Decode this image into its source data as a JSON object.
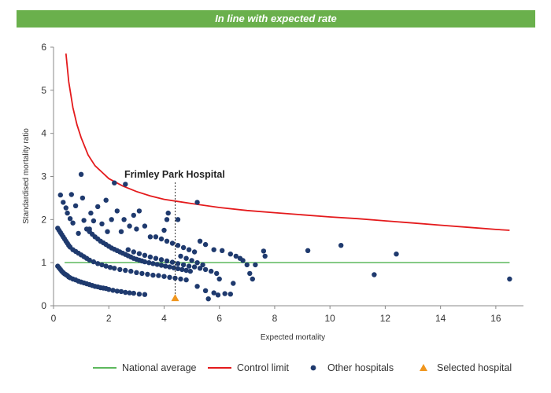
{
  "banner": {
    "text": "In line with expected rate",
    "color": "#6ab04c"
  },
  "chart_data": {
    "type": "scatter",
    "xlabel": "Expected mortality",
    "ylabel": "Standardised mortality ratio",
    "xlim": [
      0,
      17
    ],
    "ylim": [
      0,
      6
    ],
    "x_ticks": [
      0,
      2,
      4,
      6,
      8,
      10,
      12,
      14,
      16
    ],
    "y_ticks": [
      0,
      1,
      2,
      3,
      4,
      5,
      6
    ],
    "grid": false,
    "legend_position": "bottom",
    "colors": {
      "national_average": "#5cb85c",
      "control_limit": "#e41a1c",
      "other_hospitals": "#1f3a6e",
      "selected_hospital": "#f0961e"
    },
    "annotation": {
      "text": "Frimley Park Hospital",
      "x": 4.4
    },
    "national_average": {
      "name": "National average",
      "y": 1,
      "x_range": [
        0.4,
        16.5
      ]
    },
    "control_limit": {
      "name": "Control limit",
      "points": [
        [
          0.45,
          5.85
        ],
        [
          0.55,
          5.2
        ],
        [
          0.7,
          4.6
        ],
        [
          0.85,
          4.2
        ],
        [
          1.0,
          3.9
        ],
        [
          1.25,
          3.5
        ],
        [
          1.5,
          3.25
        ],
        [
          2.0,
          2.95
        ],
        [
          2.5,
          2.78
        ],
        [
          3.0,
          2.65
        ],
        [
          3.5,
          2.55
        ],
        [
          4.0,
          2.47
        ],
        [
          4.5,
          2.42
        ],
        [
          5.0,
          2.37
        ],
        [
          6.0,
          2.28
        ],
        [
          7.0,
          2.21
        ],
        [
          8.0,
          2.16
        ],
        [
          9.0,
          2.11
        ],
        [
          10.0,
          2.06
        ],
        [
          11.0,
          2.02
        ],
        [
          12.0,
          1.97
        ],
        [
          13.0,
          1.92
        ],
        [
          14.0,
          1.87
        ],
        [
          15.0,
          1.82
        ],
        [
          16.0,
          1.77
        ],
        [
          16.5,
          1.75
        ]
      ]
    },
    "other_hospitals": {
      "name": "Other hospitals",
      "points": [
        [
          0.25,
          2.57
        ],
        [
          0.35,
          2.4
        ],
        [
          0.45,
          2.27
        ],
        [
          0.5,
          2.15
        ],
        [
          0.6,
          2.02
        ],
        [
          0.65,
          2.58
        ],
        [
          0.7,
          1.92
        ],
        [
          0.8,
          2.32
        ],
        [
          0.9,
          1.68
        ],
        [
          1.0,
          3.05
        ],
        [
          1.05,
          2.5
        ],
        [
          1.1,
          1.98
        ],
        [
          1.3,
          1.78
        ],
        [
          1.35,
          2.15
        ],
        [
          1.45,
          1.97
        ],
        [
          1.6,
          2.3
        ],
        [
          1.75,
          1.9
        ],
        [
          1.9,
          2.45
        ],
        [
          1.95,
          1.72
        ],
        [
          2.1,
          2.0
        ],
        [
          2.2,
          2.85
        ],
        [
          2.3,
          2.2
        ],
        [
          2.45,
          1.72
        ],
        [
          2.55,
          2.0
        ],
        [
          2.6,
          2.82
        ],
        [
          2.75,
          1.85
        ],
        [
          2.9,
          2.1
        ],
        [
          3.0,
          1.78
        ],
        [
          3.1,
          2.2
        ],
        [
          3.3,
          1.85
        ],
        [
          3.5,
          1.6
        ],
        [
          4.0,
          1.75
        ],
        [
          4.1,
          2.0
        ],
        [
          4.15,
          2.15
        ],
        [
          4.5,
          2.0
        ],
        [
          5.2,
          2.4
        ],
        [
          0.15,
          1.8
        ],
        [
          0.2,
          1.75
        ],
        [
          0.25,
          1.7
        ],
        [
          0.3,
          1.65
        ],
        [
          0.35,
          1.6
        ],
        [
          0.4,
          1.55
        ],
        [
          0.45,
          1.5
        ],
        [
          0.5,
          1.45
        ],
        [
          0.55,
          1.4
        ],
        [
          0.6,
          1.36
        ],
        [
          0.7,
          1.3
        ],
        [
          0.8,
          1.26
        ],
        [
          0.9,
          1.22
        ],
        [
          1.0,
          1.18
        ],
        [
          1.1,
          1.14
        ],
        [
          1.2,
          1.1
        ],
        [
          1.3,
          1.06
        ],
        [
          1.45,
          1.02
        ],
        [
          1.6,
          0.98
        ],
        [
          1.75,
          0.95
        ],
        [
          1.9,
          0.92
        ],
        [
          2.05,
          0.89
        ],
        [
          2.2,
          0.87
        ],
        [
          2.4,
          0.84
        ],
        [
          2.6,
          0.82
        ],
        [
          2.8,
          0.8
        ],
        [
          3.0,
          0.77
        ],
        [
          3.2,
          0.75
        ],
        [
          3.4,
          0.73
        ],
        [
          3.6,
          0.71
        ],
        [
          3.8,
          0.7
        ],
        [
          4.0,
          0.68
        ],
        [
          4.2,
          0.66
        ],
        [
          4.4,
          0.64
        ],
        [
          4.6,
          0.62
        ],
        [
          4.8,
          0.6
        ],
        [
          0.15,
          0.92
        ],
        [
          0.2,
          0.88
        ],
        [
          0.25,
          0.84
        ],
        [
          0.3,
          0.8
        ],
        [
          0.35,
          0.77
        ],
        [
          0.4,
          0.74
        ],
        [
          0.45,
          0.72
        ],
        [
          0.5,
          0.7
        ],
        [
          0.55,
          0.67
        ],
        [
          0.6,
          0.65
        ],
        [
          0.7,
          0.62
        ],
        [
          0.8,
          0.6
        ],
        [
          0.9,
          0.57
        ],
        [
          1.0,
          0.55
        ],
        [
          1.1,
          0.53
        ],
        [
          1.2,
          0.51
        ],
        [
          1.3,
          0.49
        ],
        [
          1.4,
          0.47
        ],
        [
          1.5,
          0.45
        ],
        [
          1.6,
          0.44
        ],
        [
          1.7,
          0.42
        ],
        [
          1.8,
          0.41
        ],
        [
          1.9,
          0.4
        ],
        [
          2.0,
          0.38
        ],
        [
          2.15,
          0.36
        ],
        [
          2.3,
          0.34
        ],
        [
          2.45,
          0.33
        ],
        [
          2.6,
          0.31
        ],
        [
          2.75,
          0.3
        ],
        [
          2.9,
          0.29
        ],
        [
          3.1,
          0.27
        ],
        [
          3.3,
          0.26
        ],
        [
          1.2,
          1.78
        ],
        [
          1.3,
          1.72
        ],
        [
          1.4,
          1.66
        ],
        [
          1.5,
          1.6
        ],
        [
          1.6,
          1.55
        ],
        [
          1.7,
          1.5
        ],
        [
          1.8,
          1.46
        ],
        [
          1.9,
          1.42
        ],
        [
          2.0,
          1.38
        ],
        [
          2.1,
          1.34
        ],
        [
          2.2,
          1.31
        ],
        [
          2.3,
          1.28
        ],
        [
          2.4,
          1.25
        ],
        [
          2.5,
          1.22
        ],
        [
          2.6,
          1.19
        ],
        [
          2.7,
          1.16
        ],
        [
          2.8,
          1.13
        ],
        [
          2.9,
          1.1
        ],
        [
          3.0,
          1.08
        ],
        [
          3.1,
          1.06
        ],
        [
          3.2,
          1.04
        ],
        [
          3.3,
          1.02
        ],
        [
          3.45,
          1.0
        ],
        [
          3.6,
          0.98
        ],
        [
          3.75,
          0.96
        ],
        [
          3.9,
          0.94
        ],
        [
          4.05,
          0.92
        ],
        [
          4.2,
          0.9
        ],
        [
          4.35,
          0.88
        ],
        [
          4.5,
          0.86
        ],
        [
          4.65,
          0.84
        ],
        [
          4.8,
          0.82
        ],
        [
          4.95,
          0.8
        ],
        [
          2.7,
          1.3
        ],
        [
          2.9,
          1.25
        ],
        [
          3.1,
          1.21
        ],
        [
          3.3,
          1.17
        ],
        [
          3.5,
          1.13
        ],
        [
          3.7,
          1.1
        ],
        [
          3.9,
          1.07
        ],
        [
          4.1,
          1.04
        ],
        [
          4.3,
          1.01
        ],
        [
          4.5,
          0.98
        ],
        [
          4.7,
          0.95
        ],
        [
          4.9,
          0.92
        ],
        [
          5.1,
          0.9
        ],
        [
          5.3,
          0.87
        ],
        [
          5.5,
          0.84
        ],
        [
          5.7,
          0.8
        ],
        [
          5.9,
          0.75
        ],
        [
          3.7,
          1.6
        ],
        [
          3.9,
          1.55
        ],
        [
          4.1,
          1.5
        ],
        [
          4.3,
          1.45
        ],
        [
          4.5,
          1.4
        ],
        [
          4.7,
          1.35
        ],
        [
          4.9,
          1.3
        ],
        [
          5.1,
          1.25
        ],
        [
          5.3,
          1.5
        ],
        [
          5.5,
          1.42
        ],
        [
          5.8,
          1.3
        ],
        [
          4.6,
          1.15
        ],
        [
          4.8,
          1.1
        ],
        [
          5.0,
          1.05
        ],
        [
          5.2,
          1.0
        ],
        [
          5.4,
          0.95
        ],
        [
          5.2,
          0.45
        ],
        [
          5.5,
          0.35
        ],
        [
          5.6,
          0.16
        ],
        [
          5.8,
          0.3
        ],
        [
          5.95,
          0.25
        ],
        [
          6.2,
          0.28
        ],
        [
          6.4,
          0.27
        ],
        [
          6.5,
          0.52
        ],
        [
          6.0,
          0.62
        ],
        [
          6.1,
          1.28
        ],
        [
          6.4,
          1.2
        ],
        [
          6.6,
          1.15
        ],
        [
          6.75,
          1.1
        ],
        [
          7.0,
          0.95
        ],
        [
          7.1,
          0.75
        ],
        [
          7.2,
          0.62
        ],
        [
          7.3,
          0.95
        ],
        [
          6.85,
          1.05
        ],
        [
          7.6,
          1.27
        ],
        [
          7.65,
          1.15
        ],
        [
          9.2,
          1.28
        ],
        [
          10.4,
          1.4
        ],
        [
          11.6,
          0.72
        ],
        [
          12.4,
          1.2
        ],
        [
          16.5,
          0.62
        ]
      ]
    },
    "selected_hospital": {
      "name": "Selected hospital",
      "x": 4.4,
      "y": 0.18
    }
  }
}
